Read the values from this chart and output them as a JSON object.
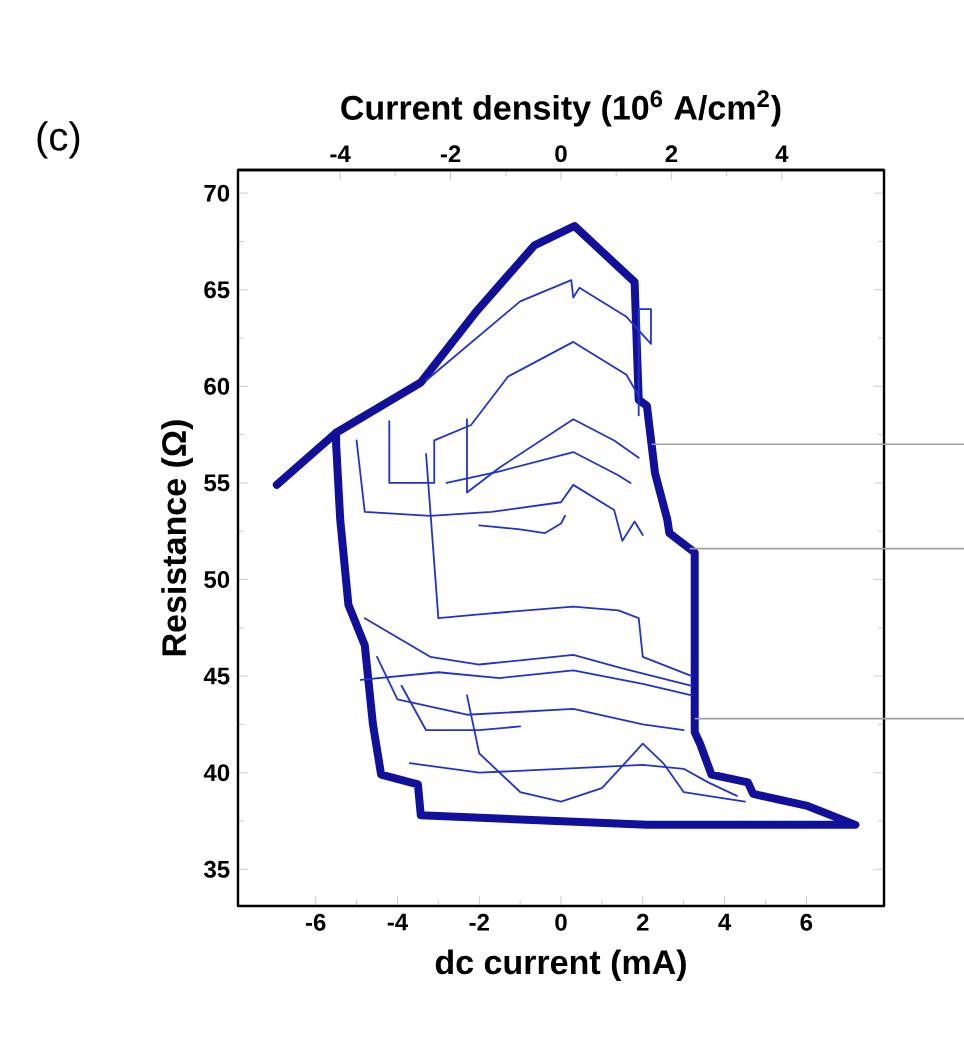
{
  "chart_data": {
    "type": "line",
    "xlabel": "dc current (mA)",
    "ylabel": "Resistance (Ω)",
    "x2label": "Current density (10$^{6}$ A/cm$^{2}$)",
    "annotations": [
      "(c)"
    ],
    "xlim": [
      -7.9,
      7.9
    ],
    "xticks": [
      -6,
      -4,
      -2,
      0,
      2,
      4,
      6
    ],
    "x2lim": [
      -5.85,
      5.85
    ],
    "x2ticks": [
      -4,
      -2,
      0,
      2,
      4
    ],
    "ylim": [
      33.1,
      71.2
    ],
    "yticks": [
      35,
      40,
      45,
      50,
      55,
      60,
      65,
      70
    ],
    "ref_lines": [
      {
        "axis": "y",
        "value": 57.0,
        "color": "#a0a0a0"
      },
      {
        "axis": "y",
        "value": 51.6,
        "color": "#a0a0a0"
      },
      {
        "axis": "y",
        "value": 42.8,
        "color": "#a0a0a0"
      }
    ],
    "series": [
      {
        "color": "#10109a",
        "x": [
          -6.95,
          -5.5,
          -3.43,
          -2.1,
          -0.65,
          0.33,
          1.8,
          1.9,
          2.1,
          2.3,
          2.6,
          2.65,
          3.27,
          3.27,
          3.4,
          3.68,
          4.57,
          4.7,
          6.0,
          7.2,
          2.1,
          -3.43,
          -3.5,
          -4.4,
          -4.6,
          -4.8,
          -5.2,
          -5.4,
          -5.5,
          -5.5
        ],
        "values": [
          54.9,
          57.6,
          60.2,
          63.8,
          67.3,
          68.3,
          65.4,
          59.3,
          59.0,
          55.5,
          53.1,
          52.4,
          51.4,
          42.1,
          41.5,
          39.9,
          39.5,
          38.9,
          38.3,
          37.3,
          37.3,
          37.8,
          39.4,
          39.9,
          42.5,
          46.6,
          48.7,
          53.1,
          57.0,
          57.6
        ]
      },
      {
        "color": "#2233cc",
        "x": [
          -3.3,
          -1.0,
          0.25,
          0.3,
          0.45,
          1.6,
          2.2,
          2.2,
          1.9,
          1.9
        ],
        "values": [
          60.3,
          64.4,
          65.5,
          64.6,
          65.1,
          63.6,
          62.2,
          64.0,
          64.0,
          58.5
        ]
      },
      {
        "color": "#2233cc",
        "x": [
          -4.2,
          -4.2,
          -3.1,
          -3.1,
          -2.2,
          -1.3,
          0.3,
          1.6,
          1.9
        ],
        "values": [
          58.2,
          55.0,
          55.0,
          57.2,
          58.0,
          60.5,
          62.3,
          60.6,
          59.5
        ]
      },
      {
        "color": "#2233cc",
        "x": [
          -2.3,
          -2.3,
          -1.5,
          0.3,
          1.3,
          1.9
        ],
        "values": [
          58.3,
          54.5,
          55.8,
          58.3,
          57.2,
          56.3
        ]
      },
      {
        "color": "#2233cc",
        "x": [
          -2.8,
          -1.5,
          0.3,
          1.4,
          1.7
        ],
        "values": [
          55.0,
          55.6,
          56.6,
          55.4,
          55.0
        ]
      },
      {
        "color": "#2233cc",
        "x": [
          -5.0,
          -4.8,
          -3.2,
          -1.7,
          0.0,
          0.3,
          1.3,
          1.5,
          1.8,
          2.0
        ],
        "values": [
          57.2,
          53.5,
          53.3,
          53.5,
          54.0,
          54.9,
          53.6,
          52.0,
          53.0,
          52.3
        ]
      },
      {
        "color": "#2233cc",
        "x": [
          -2.0,
          -1.0,
          -0.4,
          0.0,
          0.1
        ],
        "values": [
          52.8,
          52.6,
          52.4,
          52.9,
          53.3
        ]
      },
      {
        "color": "#2233cc",
        "x": [
          -3.3,
          -3.0,
          -2.0,
          0.3,
          1.4,
          1.9,
          2.0,
          3.2
        ],
        "values": [
          56.5,
          48.0,
          48.2,
          48.6,
          48.4,
          48.0,
          46.0,
          45.0
        ]
      },
      {
        "color": "#2233cc",
        "x": [
          -4.8,
          -3.2,
          -2.0,
          0.3,
          1.5,
          3.2
        ],
        "values": [
          48.0,
          46.0,
          45.6,
          46.1,
          45.4,
          44.5
        ]
      },
      {
        "color": "#2233cc",
        "x": [
          -4.9,
          -3.0,
          -1.5,
          0.3,
          2.0,
          3.2
        ],
        "values": [
          44.8,
          45.2,
          44.9,
          45.3,
          44.6,
          44.0
        ]
      },
      {
        "color": "#2233cc",
        "x": [
          -4.5,
          -4.0,
          -2.3,
          0.3,
          2.0,
          3.0
        ],
        "values": [
          46.0,
          43.8,
          43.0,
          43.3,
          42.5,
          42.2
        ]
      },
      {
        "color": "#2233cc",
        "x": [
          -3.9,
          -3.3,
          -2.0,
          -1.0
        ],
        "values": [
          44.5,
          42.2,
          42.2,
          42.4
        ]
      },
      {
        "color": "#2233cc",
        "x": [
          -3.7,
          -2.0,
          0.0,
          2.0,
          3.0,
          3.6,
          4.3
        ],
        "values": [
          40.5,
          40.0,
          40.2,
          40.4,
          40.2,
          39.5,
          38.8
        ]
      },
      {
        "color": "#2233cc",
        "x": [
          -2.3,
          -2.0,
          -1.0,
          0.0,
          1.0,
          2.0,
          2.5,
          3.0,
          4.5
        ],
        "values": [
          44.0,
          41.0,
          39.0,
          38.5,
          39.2,
          41.5,
          40.5,
          39.0,
          38.5
        ]
      }
    ]
  }
}
